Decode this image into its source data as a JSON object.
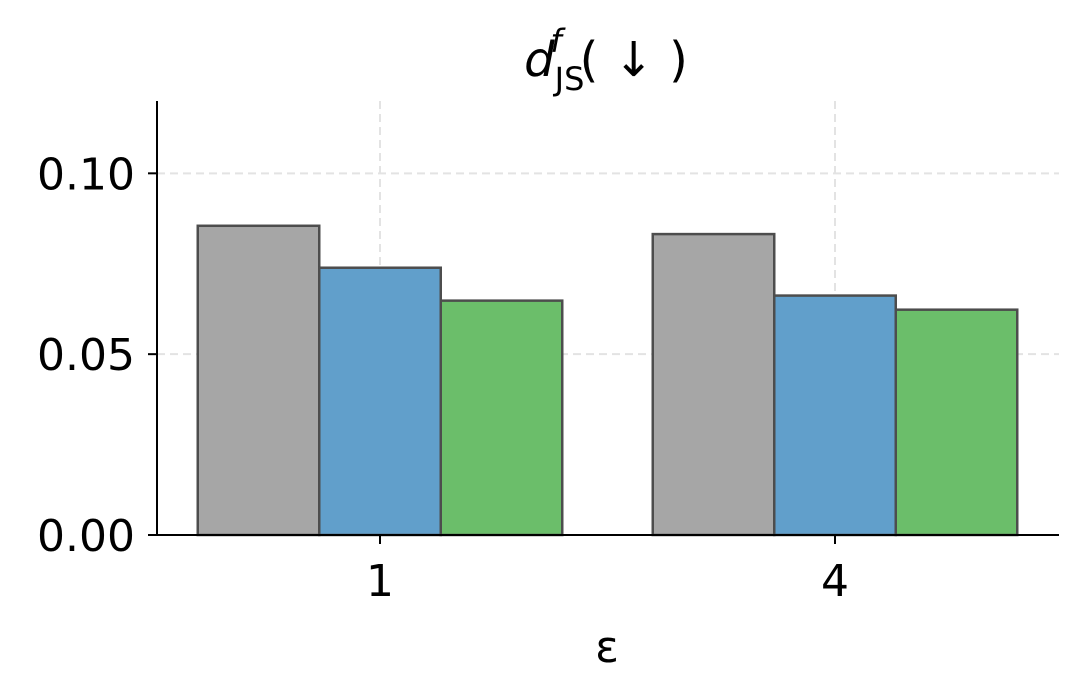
{
  "chart_data": {
    "type": "bar",
    "title": "( ↓ )",
    "title_math": {
      "base": "d",
      "superscript": "f",
      "subscript": "JS"
    },
    "xlabel": "ε",
    "ylabel": "",
    "categories": [
      "1",
      "4"
    ],
    "series": [
      {
        "values": [
          0.0855,
          0.0832
        ],
        "color": "#a6a6a6"
      },
      {
        "values": [
          0.0739,
          0.0662
        ],
        "color": "#619fcb"
      },
      {
        "values": [
          0.0648,
          0.0623
        ],
        "color": "#6bbe6a"
      }
    ],
    "ylim": [
      0,
      0.12
    ],
    "yticks": [
      0.0,
      0.05,
      0.1
    ],
    "ytick_labels": [
      "0.00",
      "0.05",
      "0.10"
    ],
    "grid": true,
    "legend": "none"
  }
}
